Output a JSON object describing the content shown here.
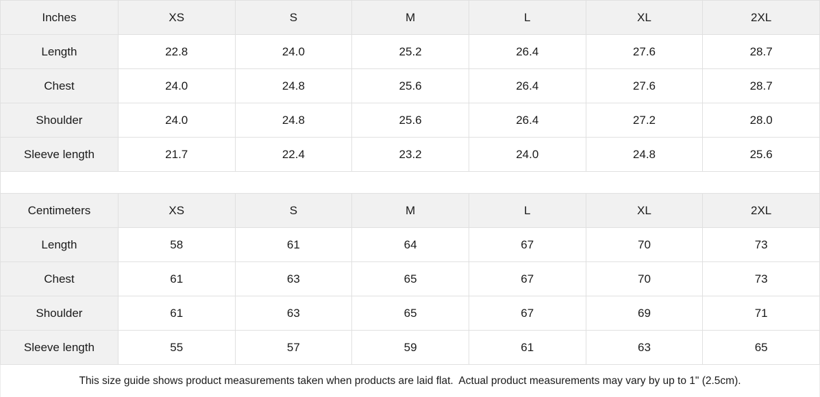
{
  "colors": {
    "header_bg": "#f1f1f1",
    "border": "#e0e0e0",
    "text": "#1a1a1a"
  },
  "chart_data": [
    {
      "type": "table",
      "unit_label": "Inches",
      "size_headers": [
        "XS",
        "S",
        "M",
        "L",
        "XL",
        "2XL"
      ],
      "rows": [
        {
          "label": "Length",
          "values": [
            "22.8",
            "24.0",
            "25.2",
            "26.4",
            "27.6",
            "28.7"
          ]
        },
        {
          "label": "Chest",
          "values": [
            "24.0",
            "24.8",
            "25.6",
            "26.4",
            "27.6",
            "28.7"
          ]
        },
        {
          "label": "Shoulder",
          "values": [
            "24.0",
            "24.8",
            "25.6",
            "26.4",
            "27.2",
            "28.0"
          ]
        },
        {
          "label": "Sleeve length",
          "values": [
            "21.7",
            "22.4",
            "23.2",
            "24.0",
            "24.8",
            "25.6"
          ]
        }
      ]
    },
    {
      "type": "table",
      "unit_label": "Centimeters",
      "size_headers": [
        "XS",
        "S",
        "M",
        "L",
        "XL",
        "2XL"
      ],
      "rows": [
        {
          "label": "Length",
          "values": [
            "58",
            "61",
            "64",
            "67",
            "70",
            "73"
          ]
        },
        {
          "label": "Chest",
          "values": [
            "61",
            "63",
            "65",
            "67",
            "70",
            "73"
          ]
        },
        {
          "label": "Shoulder",
          "values": [
            "61",
            "63",
            "65",
            "67",
            "69",
            "71"
          ]
        },
        {
          "label": "Sleeve length",
          "values": [
            "55",
            "57",
            "59",
            "61",
            "63",
            "65"
          ]
        }
      ]
    }
  ],
  "footer_note": "This size guide shows product measurements taken when products are laid flat.  Actual product measurements may vary by up to 1\" (2.5cm)."
}
